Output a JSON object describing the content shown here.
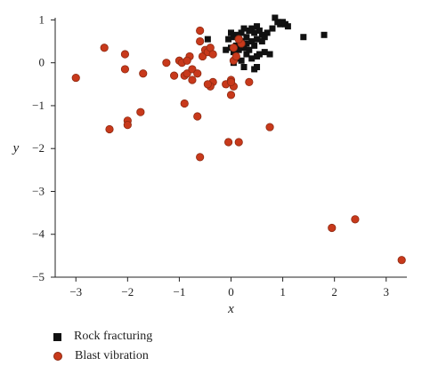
{
  "chart_data": {
    "type": "scatter",
    "title": "",
    "xlabel": "x",
    "ylabel": "y",
    "xlim": [
      -3.4,
      3.4
    ],
    "ylim": [
      -5,
      1.05
    ],
    "xticks": [
      -3,
      -2,
      -1,
      0,
      1,
      2,
      3
    ],
    "yticks": [
      1,
      0,
      -1,
      -2,
      -3,
      -4,
      -5
    ],
    "xtick_labels": [
      "−3",
      "−2",
      "−1",
      "0",
      "1",
      "2",
      "3"
    ],
    "ytick_labels": [
      "1",
      "0",
      "−1",
      "−2",
      "−3",
      "−4",
      "−5"
    ],
    "grid": false,
    "legend_position": "bottom-left",
    "series": [
      {
        "name": "Rock fracturing",
        "marker": "square",
        "color": "#111111",
        "x": [
          0.85,
          0.9,
          0.95,
          1.0,
          1.05,
          1.1,
          0.8,
          0.7,
          0.6,
          0.55,
          0.5,
          0.45,
          0.4,
          0.35,
          0.3,
          0.25,
          0.2,
          0.15,
          0.1,
          0.05,
          0.0,
          -0.05,
          0.65,
          0.6,
          0.5,
          0.45,
          0.4,
          0.3,
          0.25,
          0.2,
          0.15,
          0.1,
          0.05,
          0.0,
          0.55,
          0.5,
          0.4,
          0.3,
          0.2,
          0.1,
          0.75,
          0.65,
          0.35,
          0.5,
          -0.1,
          -0.45,
          1.4,
          1.8,
          0.05,
          0.25,
          0.45
        ],
        "y": [
          1.05,
          0.95,
          0.9,
          0.95,
          0.9,
          0.85,
          0.8,
          0.7,
          0.65,
          0.75,
          0.85,
          0.7,
          0.8,
          0.75,
          0.6,
          0.8,
          0.7,
          0.55,
          0.65,
          0.6,
          0.7,
          0.55,
          0.6,
          0.5,
          0.55,
          0.4,
          0.5,
          0.45,
          0.35,
          0.5,
          0.3,
          0.4,
          0.25,
          0.35,
          0.2,
          0.15,
          0.1,
          0.2,
          0.05,
          0.1,
          0.2,
          0.25,
          0.3,
          -0.1,
          0.3,
          0.55,
          0.6,
          0.65,
          0.0,
          -0.1,
          -0.15
        ]
      },
      {
        "name": "Blast vibration",
        "marker": "circle",
        "color": "#c8391b",
        "x": [
          -3.0,
          -2.45,
          -2.05,
          -2.05,
          -1.7,
          -2.0,
          -2.0,
          -2.35,
          -1.75,
          -1.25,
          -1.1,
          -1.0,
          -0.95,
          -0.9,
          -0.85,
          -0.75,
          -0.75,
          -0.65,
          -0.6,
          -0.55,
          -0.5,
          -0.45,
          -0.4,
          -0.35,
          -0.4,
          -0.9,
          -0.8,
          -0.6,
          -0.45,
          -0.35,
          -0.1,
          0.0,
          0.05,
          0.0,
          0.05,
          0.1,
          0.15,
          0.2,
          0.35,
          -0.05,
          0.15,
          0.75,
          -0.65,
          -0.85,
          -0.6,
          0.05,
          0.15,
          0.0,
          1.95,
          2.4,
          3.3
        ],
        "y": [
          -0.35,
          0.35,
          0.2,
          -0.15,
          -0.25,
          -1.35,
          -1.45,
          -1.55,
          -1.15,
          0.0,
          -0.3,
          0.05,
          0.0,
          -0.3,
          -0.25,
          -0.15,
          -0.4,
          -0.25,
          0.75,
          0.15,
          0.3,
          0.25,
          0.35,
          -0.45,
          -0.55,
          -0.95,
          0.15,
          0.5,
          -0.5,
          0.2,
          -0.5,
          -0.4,
          -0.55,
          -0.75,
          0.05,
          0.15,
          0.55,
          0.45,
          -0.45,
          -1.85,
          -1.85,
          -1.5,
          -1.25,
          0.05,
          -2.2,
          0.35,
          0.55,
          -0.45,
          -3.85,
          -3.65,
          -4.6
        ]
      }
    ]
  }
}
